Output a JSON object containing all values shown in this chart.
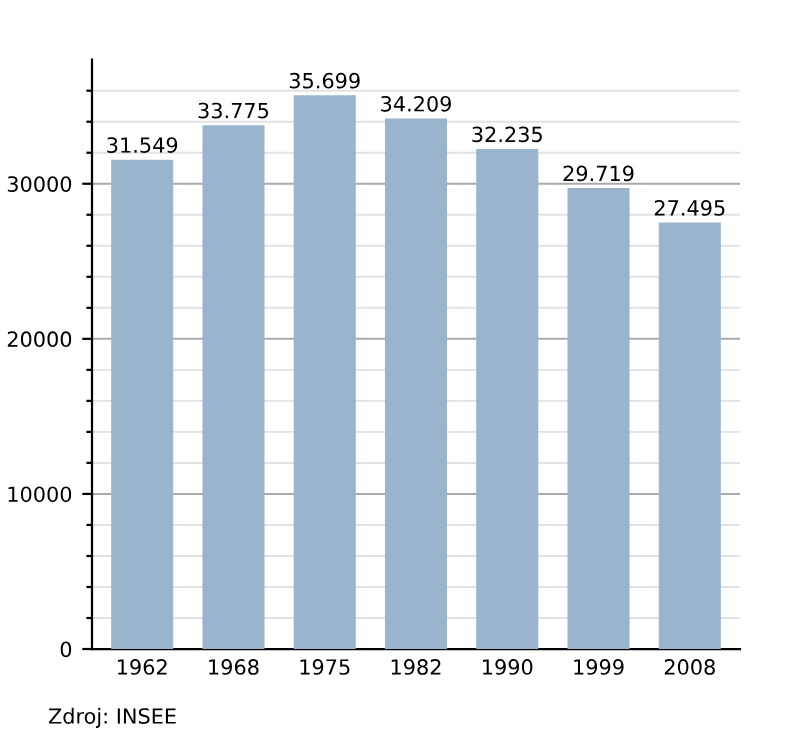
{
  "chart_data": {
    "type": "bar",
    "categories": [
      "1962",
      "1968",
      "1975",
      "1982",
      "1990",
      "1999",
      "2008"
    ],
    "values": [
      31549,
      33775,
      35699,
      34209,
      32235,
      29719,
      27495
    ],
    "value_labels": [
      "31.549",
      "33.775",
      "35.699",
      "34.209",
      "32.235",
      "29.719",
      "27.495"
    ],
    "color": "#9bb4cd",
    "ylim": [
      0,
      38000
    ],
    "yticks": [
      0,
      {
        "value": 2000,
        "label": null
      },
      {
        "value": 4000,
        "label": null
      },
      {
        "value": 6000,
        "label": null
      },
      {
        "value": 8000,
        "label": null
      },
      10000,
      {
        "value": 12000,
        "label": null
      },
      {
        "value": 14000,
        "label": null
      },
      {
        "value": 16000,
        "label": null
      },
      {
        "value": 18000,
        "label": null
      },
      20000,
      {
        "value": 22000,
        "label": null
      },
      {
        "value": 24000,
        "label": null
      },
      {
        "value": 26000,
        "label": null
      },
      {
        "value": 28000,
        "label": null
      },
      30000,
      {
        "value": 32000,
        "label": null
      },
      {
        "value": 34000,
        "label": null
      },
      {
        "value": 36000,
        "label": null
      }
    ],
    "grid": "y",
    "annotations": [
      "Zdroj: INSEE"
    ]
  }
}
